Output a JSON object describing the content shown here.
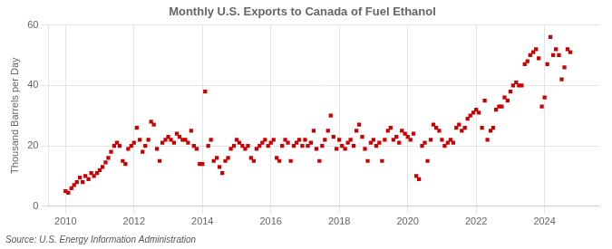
{
  "chart_data": {
    "type": "scatter",
    "title": "Monthly U.S. Exports to Canada of Fuel Ethanol",
    "y_label": "Thousand Barrels per Day",
    "annotation": "Source: U.S. Energy Information Administration",
    "color": "#cc0000",
    "marker": "square",
    "grid": true,
    "xlim": [
      2009.5,
      2025.6
    ],
    "xticks": [
      2010,
      2012,
      2014,
      2016,
      2018,
      2020,
      2022,
      2024
    ],
    "ylim": [
      0,
      60
    ],
    "yticks": [
      0,
      20,
      40,
      60
    ],
    "x": [
      2010.0,
      2010.08,
      2010.17,
      2010.25,
      2010.33,
      2010.42,
      2010.5,
      2010.58,
      2010.67,
      2010.75,
      2010.83,
      2010.92,
      2011.0,
      2011.08,
      2011.17,
      2011.25,
      2011.33,
      2011.42,
      2011.5,
      2011.58,
      2011.67,
      2011.75,
      2011.83,
      2011.92,
      2012.0,
      2012.08,
      2012.17,
      2012.25,
      2012.33,
      2012.42,
      2012.5,
      2012.58,
      2012.67,
      2012.75,
      2012.83,
      2012.92,
      2013.0,
      2013.08,
      2013.17,
      2013.25,
      2013.33,
      2013.42,
      2013.5,
      2013.58,
      2013.67,
      2013.75,
      2013.83,
      2013.92,
      2014.0,
      2014.08,
      2014.17,
      2014.25,
      2014.33,
      2014.42,
      2014.5,
      2014.58,
      2014.67,
      2014.75,
      2014.83,
      2014.92,
      2015.0,
      2015.08,
      2015.17,
      2015.25,
      2015.33,
      2015.42,
      2015.5,
      2015.58,
      2015.67,
      2015.75,
      2015.83,
      2015.92,
      2016.0,
      2016.08,
      2016.17,
      2016.25,
      2016.33,
      2016.42,
      2016.5,
      2016.58,
      2016.67,
      2016.75,
      2016.83,
      2016.92,
      2017.0,
      2017.08,
      2017.17,
      2017.25,
      2017.33,
      2017.42,
      2017.5,
      2017.58,
      2017.67,
      2017.75,
      2017.83,
      2017.92,
      2018.0,
      2018.08,
      2018.17,
      2018.25,
      2018.33,
      2018.42,
      2018.5,
      2018.58,
      2018.67,
      2018.75,
      2018.83,
      2018.92,
      2019.0,
      2019.08,
      2019.17,
      2019.25,
      2019.33,
      2019.42,
      2019.5,
      2019.58,
      2019.67,
      2019.75,
      2019.83,
      2019.92,
      2020.0,
      2020.08,
      2020.17,
      2020.25,
      2020.33,
      2020.42,
      2020.5,
      2020.58,
      2020.67,
      2020.75,
      2020.83,
      2020.92,
      2021.0,
      2021.08,
      2021.17,
      2021.25,
      2021.33,
      2021.42,
      2021.5,
      2021.58,
      2021.67,
      2021.75,
      2021.83,
      2021.92,
      2022.0,
      2022.08,
      2022.17,
      2022.25,
      2022.33,
      2022.42,
      2022.5,
      2022.58,
      2022.67,
      2022.75,
      2022.83,
      2022.92,
      2023.0,
      2023.08,
      2023.17,
      2023.25,
      2023.33,
      2023.42,
      2023.5,
      2023.58,
      2023.67,
      2023.75,
      2023.83,
      2023.92,
      2024.0,
      2024.08,
      2024.17,
      2024.25,
      2024.33,
      2024.42,
      2024.5,
      2024.58,
      2024.67,
      2024.75
    ],
    "values": [
      5.0,
      4.5,
      6.0,
      7.0,
      8.0,
      9.5,
      8.0,
      10.0,
      9.0,
      11.0,
      10.0,
      11.0,
      12.0,
      13.0,
      14.5,
      16.0,
      18.0,
      20.0,
      21.0,
      20.0,
      15.0,
      14.0,
      19.0,
      20.0,
      21.0,
      26.0,
      22.0,
      18.0,
      20.0,
      22.0,
      28.0,
      27.0,
      19.0,
      15.0,
      21.0,
      22.0,
      23.0,
      22.0,
      21.0,
      24.0,
      23.0,
      22.0,
      22.0,
      21.0,
      25.0,
      20.0,
      19.0,
      14.0,
      14.0,
      38.0,
      20.0,
      22.0,
      15.0,
      16.0,
      13.0,
      11.0,
      15.0,
      16.0,
      19.0,
      20.0,
      22.0,
      21.0,
      20.0,
      19.0,
      20.0,
      16.0,
      15.0,
      19.0,
      20.0,
      21.0,
      22.0,
      20.0,
      21.0,
      22.0,
      16.0,
      15.0,
      20.0,
      22.0,
      21.0,
      15.0,
      20.0,
      21.0,
      22.0,
      20.0,
      22.0,
      20.0,
      21.0,
      25.0,
      19.0,
      15.0,
      20.0,
      22.0,
      25.0,
      30.0,
      23.0,
      19.0,
      22.0,
      20.0,
      19.0,
      21.0,
      22.0,
      20.0,
      25.0,
      27.0,
      23.0,
      19.0,
      15.0,
      21.0,
      22.0,
      20.0,
      21.0,
      15.0,
      22.0,
      25.0,
      26.0,
      22.0,
      23.0,
      21.0,
      25.0,
      24.0,
      23.0,
      22.0,
      24.0,
      10.0,
      9.0,
      20.0,
      21.0,
      15.0,
      22.0,
      27.0,
      26.0,
      25.0,
      22.0,
      20.0,
      21.0,
      22.0,
      21.0,
      26.0,
      27.0,
      25.0,
      26.0,
      29.0,
      30.0,
      31.0,
      32.0,
      31.0,
      26.0,
      35.0,
      22.0,
      25.0,
      26.0,
      32.0,
      33.0,
      33.0,
      36.0,
      35.0,
      38.0,
      40.0,
      41.0,
      40.0,
      40.0,
      47.0,
      48.0,
      50.0,
      51.0,
      52.0,
      49.0,
      33.0,
      36.0,
      47.0,
      56.0,
      50.0,
      52.0,
      50.0,
      42.0,
      46.0,
      52.0,
      51.0
    ]
  }
}
